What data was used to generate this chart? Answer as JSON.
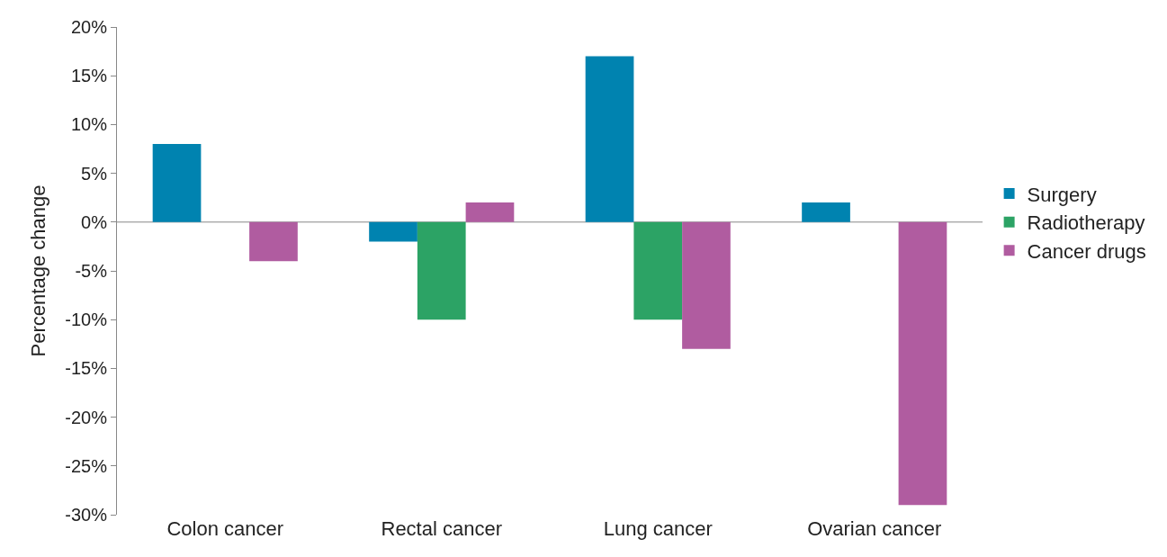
{
  "chart_data": {
    "type": "bar",
    "ylabel": "Percentage change",
    "categories": [
      "Colon cancer",
      "Rectal cancer",
      "Lung cancer",
      "Ovarian cancer"
    ],
    "series": [
      {
        "name": "Surgery",
        "color": "#0083b0",
        "values": [
          8,
          -2,
          17,
          2
        ]
      },
      {
        "name": "Radiotherapy",
        "color": "#2ca365",
        "values": [
          null,
          -10,
          -10,
          null
        ]
      },
      {
        "name": "Cancer drugs",
        "color": "#b05ca0",
        "values": [
          -4,
          2,
          -13,
          -29
        ]
      }
    ],
    "ylim": [
      -30,
      20
    ],
    "yticks": [
      {
        "value": -30,
        "label": "-30%"
      },
      {
        "value": -25,
        "label": "-25%"
      },
      {
        "value": -20,
        "label": "-20%"
      },
      {
        "value": -15,
        "label": "-15%"
      },
      {
        "value": -10,
        "label": "-10%"
      },
      {
        "value": -5,
        "label": "-5%"
      },
      {
        "value": 0,
        "label": "0%"
      },
      {
        "value": 5,
        "label": "5%"
      },
      {
        "value": 10,
        "label": "10%"
      },
      {
        "value": 15,
        "label": "15%"
      },
      {
        "value": 20,
        "label": "20%"
      }
    ],
    "ref_lines": [
      {
        "axis": "y",
        "value": 0,
        "color": "#888888"
      }
    ],
    "grid": false,
    "legend": "right"
  }
}
